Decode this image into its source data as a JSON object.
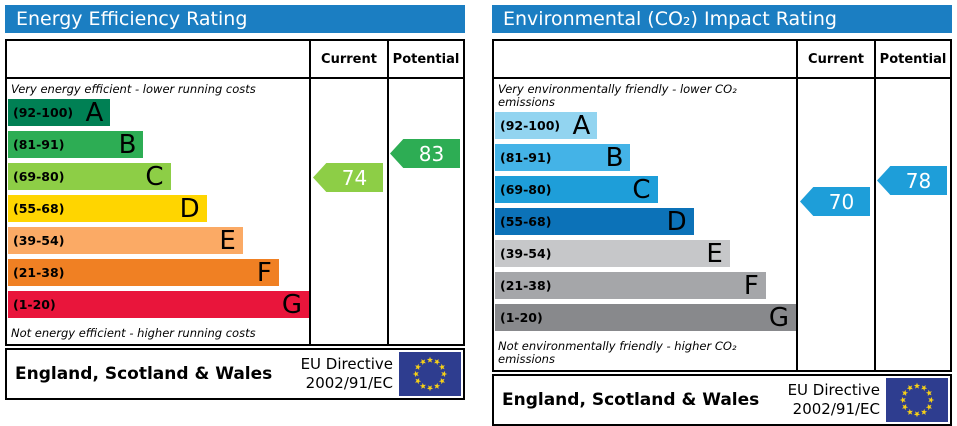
{
  "header_color": "#1b7ec2",
  "eu_flag": {
    "background": "#2e3d8f",
    "star_color": "#f7d117"
  },
  "chart_data": [
    {
      "type": "bar",
      "variant": "epc-rating",
      "title": "Energy Efficiency Rating",
      "columns": [
        "Current",
        "Potential"
      ],
      "top_caption": "Very energy efficient - lower running costs",
      "bottom_caption": "Not energy efficient - higher running costs",
      "bands": [
        {
          "label": "A",
          "range": "(92-100)",
          "min": 92,
          "max": 100,
          "color": "#008054",
          "width_pct": 34
        },
        {
          "label": "B",
          "range": "(81-91)",
          "min": 81,
          "max": 91,
          "color": "#2dad54",
          "width_pct": 45
        },
        {
          "label": "C",
          "range": "(69-80)",
          "min": 69,
          "max": 80,
          "color": "#8dce46",
          "width_pct": 54
        },
        {
          "label": "D",
          "range": "(55-68)",
          "min": 55,
          "max": 68,
          "color": "#ffd500",
          "width_pct": 66
        },
        {
          "label": "E",
          "range": "(39-54)",
          "min": 39,
          "max": 54,
          "color": "#fbaa65",
          "width_pct": 78
        },
        {
          "label": "F",
          "range": "(21-38)",
          "min": 21,
          "max": 38,
          "color": "#f08023",
          "width_pct": 90
        },
        {
          "label": "G",
          "range": "(1-20)",
          "min": 1,
          "max": 20,
          "color": "#e9153b",
          "width_pct": 100
        }
      ],
      "current": {
        "value": 74,
        "color": "#8dce46"
      },
      "potential": {
        "value": 83,
        "color": "#2dad54"
      },
      "footer": {
        "region": "England, Scotland & Wales",
        "directive_line1": "EU Directive",
        "directive_line2": "2002/91/EC"
      }
    },
    {
      "type": "bar",
      "variant": "epc-rating",
      "title": "Environmental (CO₂) Impact Rating",
      "columns": [
        "Current",
        "Potential"
      ],
      "top_caption": "Very environmentally friendly - lower CO₂ emissions",
      "bottom_caption": "Not environmentally friendly - higher CO₂ emissions",
      "bands": [
        {
          "label": "A",
          "range": "(92-100)",
          "min": 92,
          "max": 100,
          "color": "#92d4f0",
          "width_pct": 34
        },
        {
          "label": "B",
          "range": "(81-91)",
          "min": 81,
          "max": 91,
          "color": "#44b3e7",
          "width_pct": 45
        },
        {
          "label": "C",
          "range": "(69-80)",
          "min": 69,
          "max": 80,
          "color": "#1e9ed9",
          "width_pct": 54
        },
        {
          "label": "D",
          "range": "(55-68)",
          "min": 55,
          "max": 68,
          "color": "#0c72b8",
          "width_pct": 66
        },
        {
          "label": "E",
          "range": "(39-54)",
          "min": 39,
          "max": 54,
          "color": "#c6c7c9",
          "width_pct": 78
        },
        {
          "label": "F",
          "range": "(21-38)",
          "min": 21,
          "max": 38,
          "color": "#a5a6a9",
          "width_pct": 90
        },
        {
          "label": "G",
          "range": "(1-20)",
          "min": 1,
          "max": 20,
          "color": "#88898c",
          "width_pct": 100
        }
      ],
      "current": {
        "value": 70,
        "color": "#1e9ed9"
      },
      "potential": {
        "value": 78,
        "color": "#1e9ed9"
      },
      "footer": {
        "region": "England, Scotland & Wales",
        "directive_line1": "EU Directive",
        "directive_line2": "2002/91/EC"
      }
    }
  ]
}
